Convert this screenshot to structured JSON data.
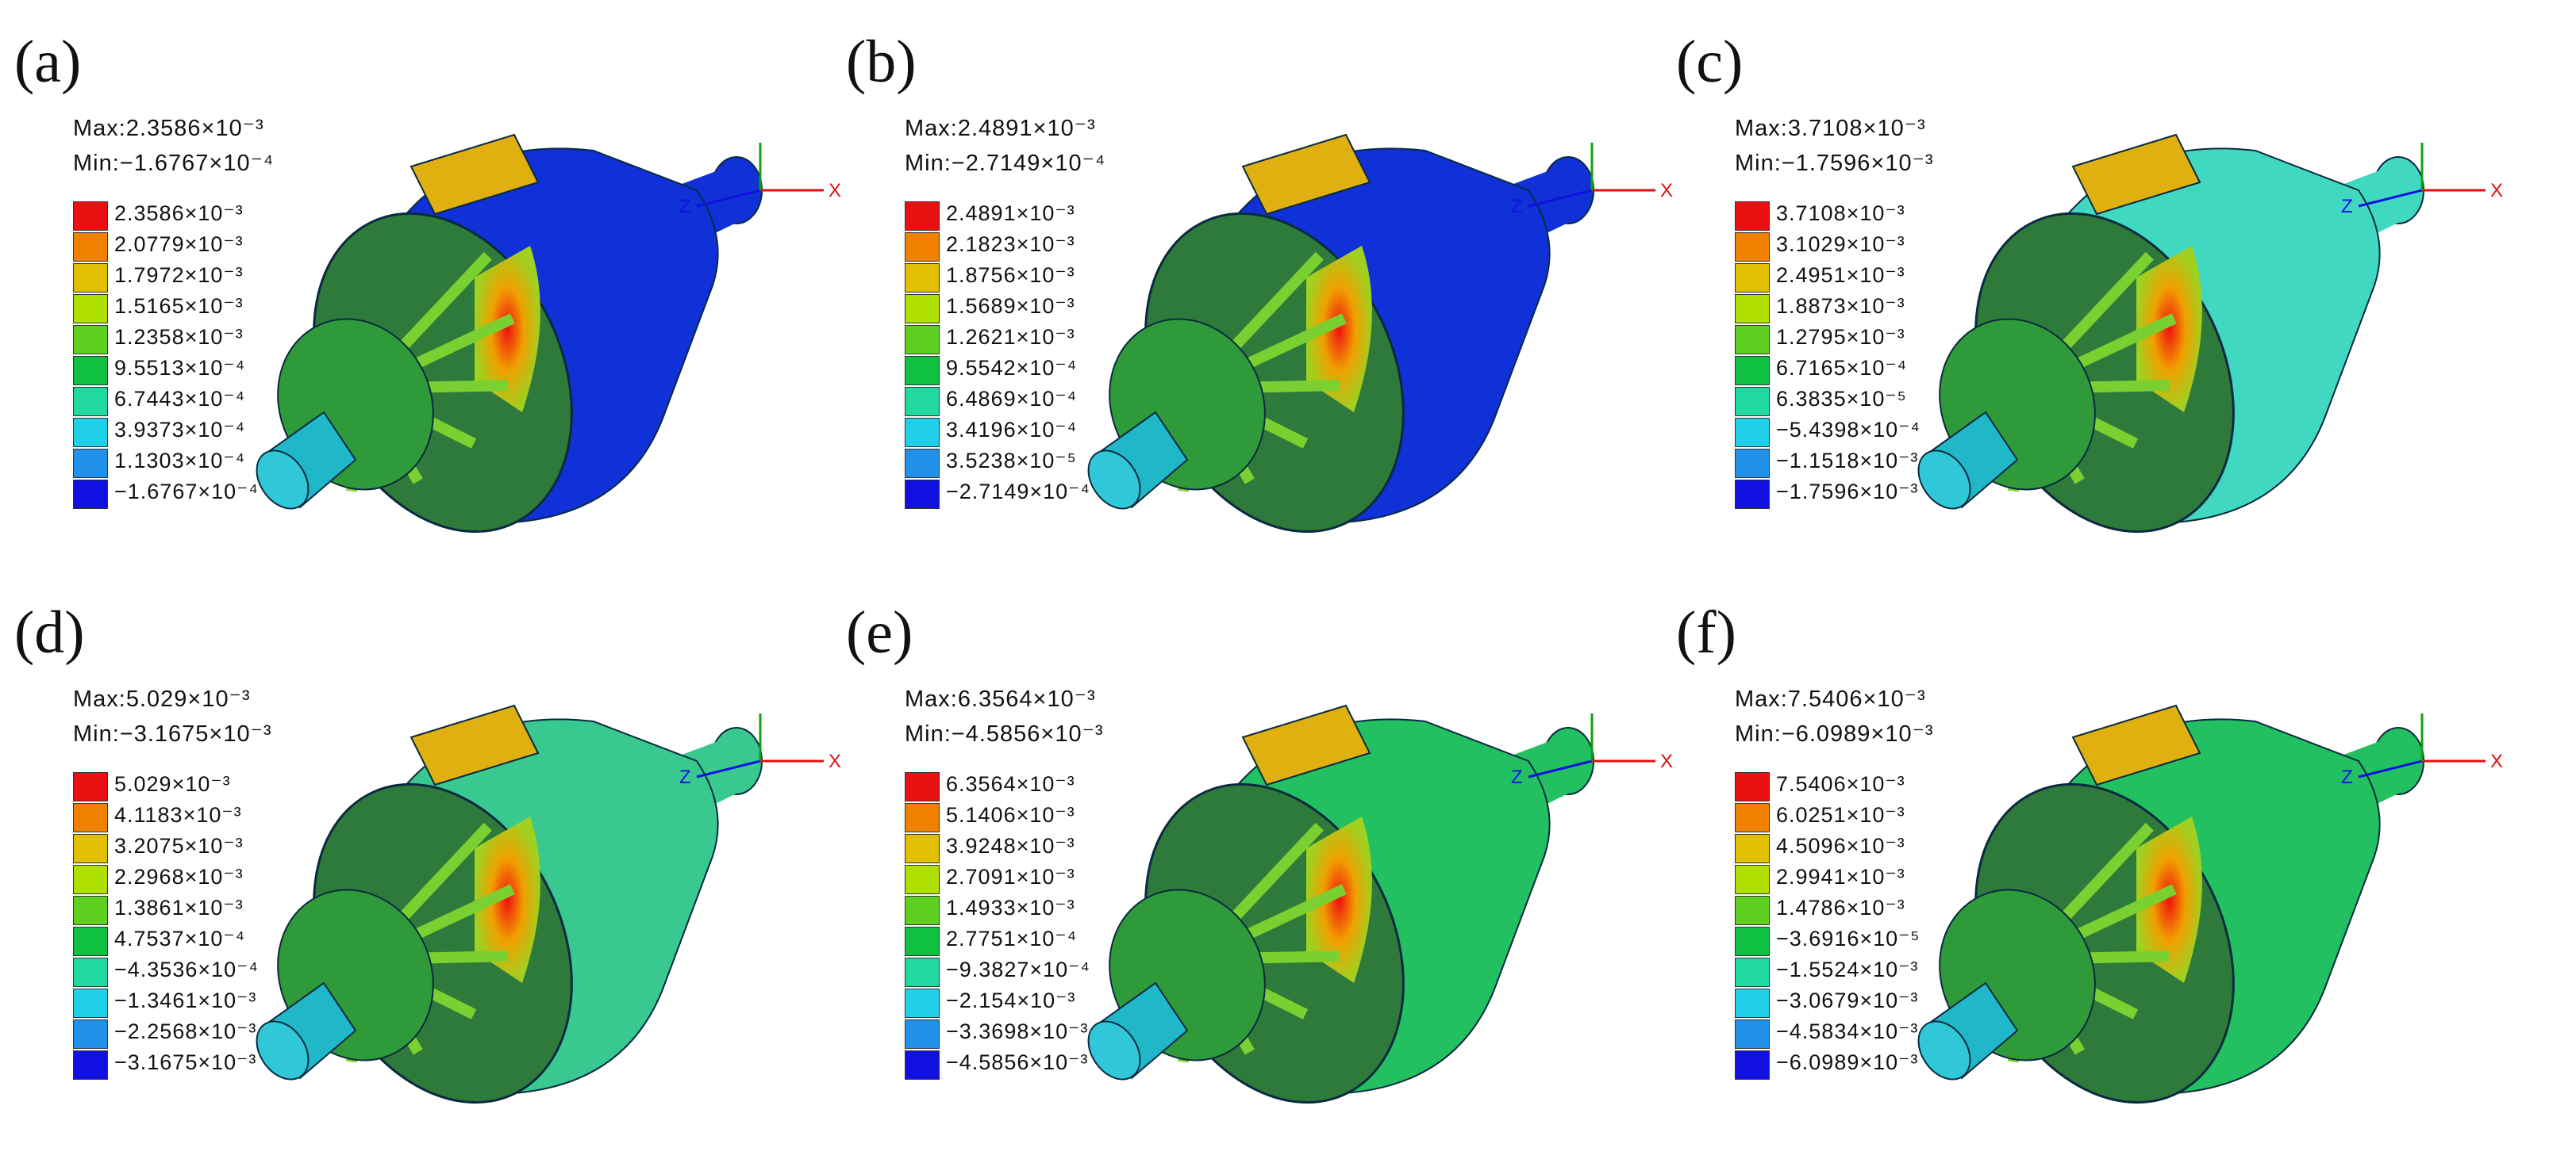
{
  "panels": [
    {
      "label": "(a)",
      "max": "Max:2.3586×10⁻³",
      "min": "Min:−1.6767×10⁻⁴",
      "legend": [
        "2.3586×10⁻³",
        "2.0779×10⁻³",
        "1.7972×10⁻³",
        "1.5165×10⁻³",
        "1.2358×10⁻³",
        "9.5513×10⁻⁴",
        "6.7443×10⁻⁴",
        "3.9373×10⁻⁴",
        "1.1303×10⁻⁴",
        "−1.6767×10⁻⁴"
      ],
      "body_color": "#1030d8"
    },
    {
      "label": "(b)",
      "max": "Max:2.4891×10⁻³",
      "min": "Min:−2.7149×10⁻⁴",
      "legend": [
        "2.4891×10⁻³",
        "2.1823×10⁻³",
        "1.8756×10⁻³",
        "1.5689×10⁻³",
        "1.2621×10⁻³",
        "9.5542×10⁻⁴",
        "6.4869×10⁻⁴",
        "3.4196×10⁻⁴",
        "3.5238×10⁻⁵",
        "−2.7149×10⁻⁴"
      ],
      "body_color": "#1030d8"
    },
    {
      "label": "(c)",
      "max": "Max:3.7108×10⁻³",
      "min": "Min:−1.7596×10⁻³",
      "legend": [
        "3.7108×10⁻³",
        "3.1029×10⁻³",
        "2.4951×10⁻³",
        "1.8873×10⁻³",
        "1.2795×10⁻³",
        "6.7165×10⁻⁴",
        "6.3835×10⁻⁵",
        "−5.4398×10⁻⁴",
        "−1.1518×10⁻³",
        "−1.7596×10⁻³"
      ],
      "body_color": "#40d8c0"
    },
    {
      "label": "(d)",
      "max": "Max:5.029×10⁻³",
      "min": "Min:−3.1675×10⁻³",
      "legend": [
        "5.029×10⁻³",
        "4.1183×10⁻³",
        "3.2075×10⁻³",
        "2.2968×10⁻³",
        "1.3861×10⁻³",
        "4.7537×10⁻⁴",
        "−4.3536×10⁻⁴",
        "−1.3461×10⁻³",
        "−2.2568×10⁻³",
        "−3.1675×10⁻³"
      ],
      "body_color": "#38c890"
    },
    {
      "label": "(e)",
      "max": "Max:6.3564×10⁻³",
      "min": "Min:−4.5856×10⁻³",
      "legend": [
        "6.3564×10⁻³",
        "5.1406×10⁻³",
        "3.9248×10⁻³",
        "2.7091×10⁻³",
        "1.4933×10⁻³",
        "2.7751×10⁻⁴",
        "−9.3827×10⁻⁴",
        "−2.154×10⁻³",
        "−3.3698×10⁻³",
        "−4.5856×10⁻³"
      ],
      "body_color": "#22c060"
    },
    {
      "label": "(f)",
      "max": "Max:7.5406×10⁻³",
      "min": "Min:−6.0989×10⁻³",
      "legend": [
        "7.5406×10⁻³",
        "6.0251×10⁻³",
        "4.5096×10⁻³",
        "2.9941×10⁻³",
        "1.4786×10⁻³",
        "−3.6916×10⁻⁵",
        "−1.5524×10⁻³",
        "−3.0679×10⁻³",
        "−4.5834×10⁻³",
        "−6.0989×10⁻³"
      ],
      "body_color": "#22c060"
    }
  ],
  "legend_colors": [
    "#e81010",
    "#f08000",
    "#e0c000",
    "#b0e000",
    "#60d020",
    "#10c040",
    "#20d8a0",
    "#20d0e8",
    "#2090e8",
    "#1010e0"
  ],
  "axis_labels": {
    "x": "X",
    "z": "Z"
  }
}
